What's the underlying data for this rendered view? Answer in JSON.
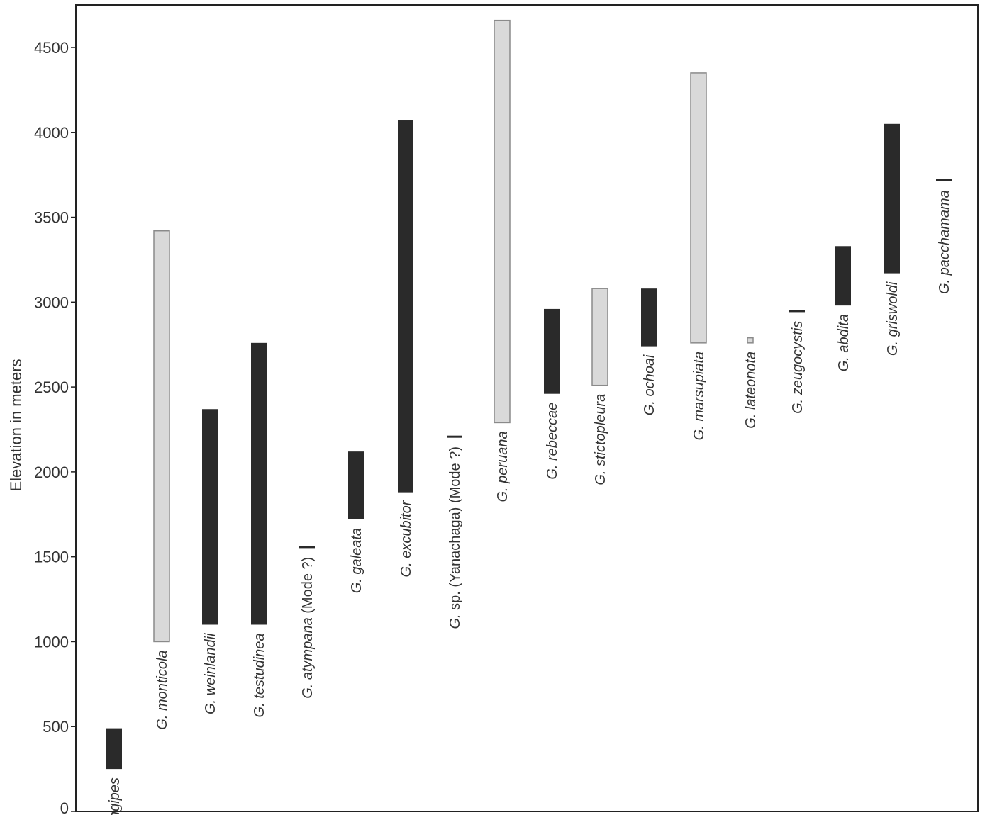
{
  "chart_data": {
    "type": "bar",
    "orientation": "floating-range",
    "title": "",
    "xlabel": "",
    "ylabel": "Elevation in meters",
    "ylim": [
      0,
      4700
    ],
    "yticks": [
      0,
      500,
      1000,
      1500,
      2000,
      2500,
      3000,
      3500,
      4000,
      4500
    ],
    "grid": false,
    "colors": {
      "dark": "#2a2a2a",
      "light": "#d9d9d9",
      "light_border": "#8a8a8a"
    },
    "series": [
      {
        "label": "G longipes",
        "suffix": "",
        "min": 250,
        "max": 490,
        "fill": "dark"
      },
      {
        "label": "G. monticola",
        "suffix": "",
        "min": 1000,
        "max": 3420,
        "fill": "light"
      },
      {
        "label": "G. weinlandii",
        "suffix": "",
        "min": 1100,
        "max": 2370,
        "fill": "dark"
      },
      {
        "label": "G. testudinea",
        "suffix": "",
        "min": 1100,
        "max": 2760,
        "fill": "dark"
      },
      {
        "label": "G. atympana",
        "suffix": " (Mode ?)",
        "min": 1550,
        "max": 1565,
        "fill": "dark"
      },
      {
        "label": "G. galeata",
        "suffix": "",
        "min": 1720,
        "max": 2120,
        "fill": "dark"
      },
      {
        "label": "G. excubitor",
        "suffix": "",
        "min": 1880,
        "max": 4070,
        "fill": "dark"
      },
      {
        "label": "G.",
        "suffix": " sp. (Yanachaga) (Mode ?)",
        "min": 2200,
        "max": 2215,
        "fill": "dark"
      },
      {
        "label": "G. peruana",
        "suffix": "",
        "min": 2290,
        "max": 4660,
        "fill": "light"
      },
      {
        "label": "G. rebeccae",
        "suffix": "",
        "min": 2460,
        "max": 2960,
        "fill": "dark"
      },
      {
        "label": "G. stictopleura",
        "suffix": "",
        "min": 2510,
        "max": 3080,
        "fill": "light"
      },
      {
        "label": "G. ochoai",
        "suffix": "",
        "min": 2740,
        "max": 3080,
        "fill": "dark"
      },
      {
        "label": "G. marsupiata",
        "suffix": "",
        "min": 2760,
        "max": 4350,
        "fill": "light"
      },
      {
        "label": "G. lateonota",
        "suffix": "",
        "min": 2760,
        "max": 2790,
        "fill": "light"
      },
      {
        "label": "G. zeugocystis",
        "suffix": "",
        "min": 2940,
        "max": 2955,
        "fill": "dark"
      },
      {
        "label": "G. abdita",
        "suffix": "",
        "min": 2980,
        "max": 3330,
        "fill": "dark"
      },
      {
        "label": "G. griswoldi",
        "suffix": "",
        "min": 3170,
        "max": 4050,
        "fill": "dark"
      },
      {
        "label": "G. pacchamama",
        "suffix": "",
        "min": 3710,
        "max": 3725,
        "fill": "dark"
      }
    ]
  }
}
